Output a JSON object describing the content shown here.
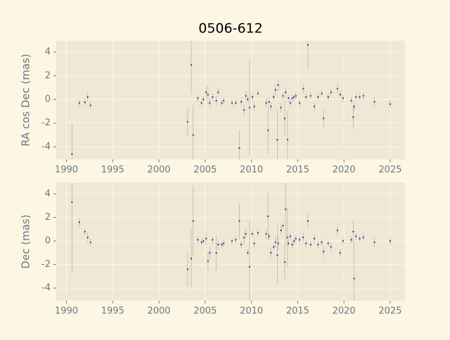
{
  "chart_data": [
    {
      "type": "scatter",
      "title": "0506-612",
      "ylabel": "RA cos Dec (mas)",
      "color": "#2a2a9a",
      "errcolor": "#bdb7a6",
      "grid": true,
      "xlim": [
        1988.9,
        2026.6
      ],
      "ylim": [
        -5.07,
        4.95
      ],
      "xticks": [
        1990,
        1995,
        2000,
        2005,
        2010,
        2015,
        2020,
        2025
      ],
      "yticks": [
        -4,
        -2,
        0,
        2,
        4
      ],
      "x": [
        1990.6,
        1991.4,
        1992.0,
        1992.3,
        1992.6,
        2003.1,
        2003.5,
        2003.7,
        2004.2,
        2004.6,
        2004.8,
        2005.1,
        2005.3,
        2005.5,
        2005.8,
        2006.2,
        2006.4,
        2006.8,
        2007.0,
        2007.9,
        2008.3,
        2008.7,
        2008.9,
        2009.2,
        2009.4,
        2009.6,
        2009.8,
        2010.1,
        2010.3,
        2010.7,
        2011.6,
        2011.8,
        2011.9,
        2012.1,
        2012.4,
        2012.6,
        2012.8,
        2012.9,
        2013.2,
        2013.4,
        2013.6,
        2013.7,
        2013.9,
        2014.0,
        2014.2,
        2014.4,
        2014.6,
        2014.8,
        2015.2,
        2015.6,
        2015.9,
        2016.1,
        2016.4,
        2016.8,
        2017.2,
        2017.6,
        2017.8,
        2018.3,
        2018.6,
        2019.3,
        2019.6,
        2019.9,
        2020.8,
        2021.0,
        2021.1,
        2021.3,
        2021.7,
        2022.1,
        2023.3,
        2025.0
      ],
      "values": [
        -4.6,
        -0.3,
        -0.25,
        0.2,
        -0.5,
        -1.9,
        2.9,
        -3.0,
        0.1,
        -0.3,
        0.0,
        0.6,
        0.4,
        -0.3,
        0.2,
        -0.1,
        0.6,
        -0.3,
        -0.1,
        -0.3,
        -0.3,
        -4.1,
        -0.2,
        -0.9,
        0.3,
        0.0,
        -0.7,
        0.2,
        -0.6,
        0.5,
        -0.3,
        -2.6,
        -0.2,
        -0.6,
        0.2,
        0.8,
        -3.4,
        1.2,
        -0.7,
        0.3,
        -1.6,
        0.6,
        -3.4,
        0.1,
        -0.3,
        0.1,
        0.2,
        0.3,
        -0.3,
        0.9,
        0.2,
        4.6,
        0.3,
        -0.6,
        0.2,
        0.5,
        -1.6,
        0.2,
        0.6,
        0.9,
        0.4,
        0.1,
        -0.1,
        -1.5,
        -0.6,
        0.2,
        0.2,
        0.3,
        -0.2,
        -0.4
      ],
      "errors": [
        2.6,
        0.3,
        0.3,
        0.4,
        0.3,
        1.2,
        2.5,
        2.5,
        0.3,
        0.3,
        0.3,
        0.5,
        0.8,
        0.4,
        0.3,
        0.4,
        0.4,
        0.3,
        0.3,
        0.3,
        0.3,
        1.5,
        0.3,
        0.5,
        0.4,
        0.3,
        4,
        0.3,
        0.4,
        0.3,
        0.4,
        2,
        0.3,
        0.4,
        0.3,
        0.5,
        2.5,
        0.5,
        0.4,
        0.3,
        1.5,
        0.5,
        2.5,
        0.3,
        0.3,
        0.3,
        0.3,
        0.3,
        0.3,
        0.4,
        0.3,
        2,
        0.3,
        0.4,
        0.3,
        0.3,
        0.8,
        0.3,
        0.3,
        0.4,
        0.3,
        0.3,
        0.3,
        1,
        0.4,
        0.3,
        0.3,
        0.3,
        0.4,
        0.3
      ]
    },
    {
      "type": "scatter",
      "ylabel": "Dec (mas)",
      "color": "#2a2a9a",
      "errcolor": "#bdb7a6",
      "grid": true,
      "xlim": [
        1988.9,
        2026.6
      ],
      "ylim": [
        -5.07,
        4.96
      ],
      "xticks": [
        1990,
        1995,
        2000,
        2005,
        2010,
        2015,
        2020,
        2025
      ],
      "yticks": [
        -4,
        -2,
        0,
        2,
        4
      ],
      "x": [
        1990.6,
        1991.4,
        1992.0,
        1992.3,
        1992.6,
        2003.1,
        2003.5,
        2003.7,
        2004.2,
        2004.6,
        2004.8,
        2005.1,
        2005.3,
        2005.5,
        2005.8,
        2006.2,
        2006.4,
        2006.8,
        2007.0,
        2007.9,
        2008.3,
        2008.7,
        2008.9,
        2009.2,
        2009.4,
        2009.6,
        2009.8,
        2010.1,
        2010.3,
        2010.7,
        2011.6,
        2011.8,
        2011.9,
        2012.1,
        2012.4,
        2012.6,
        2012.8,
        2012.9,
        2013.2,
        2013.4,
        2013.6,
        2013.7,
        2013.9,
        2014.0,
        2014.2,
        2014.4,
        2014.6,
        2014.8,
        2015.2,
        2015.6,
        2015.9,
        2016.1,
        2016.4,
        2016.8,
        2017.2,
        2017.6,
        2017.8,
        2018.3,
        2018.6,
        2019.3,
        2019.6,
        2019.9,
        2020.8,
        2021.0,
        2021.1,
        2021.3,
        2021.7,
        2022.1,
        2023.3,
        2025.0
      ],
      "values": [
        3.3,
        1.6,
        0.8,
        0.3,
        -0.1,
        -2.4,
        -1.5,
        1.7,
        0.1,
        -0.1,
        0.0,
        0.2,
        -1.7,
        -1.0,
        0.1,
        -1.0,
        -0.3,
        -0.3,
        -0.2,
        0.0,
        0.1,
        1.7,
        -0.3,
        0.3,
        0.6,
        -1.0,
        -2.2,
        0.6,
        -0.2,
        0.7,
        0.6,
        2.1,
        0.4,
        -1.0,
        -0.5,
        -0.1,
        -1.2,
        -0.2,
        0.9,
        1.3,
        -1.8,
        2.7,
        0.3,
        -0.2,
        0.4,
        -0.3,
        0.0,
        0.2,
        0.1,
        0.3,
        -0.2,
        1.7,
        -0.3,
        0.2,
        -0.3,
        -0.1,
        -0.9,
        -0.2,
        -0.5,
        0.9,
        -1.0,
        0.0,
        0.1,
        0.8,
        -3.2,
        0.4,
        0.2,
        0.3,
        -0.1,
        0.0
      ],
      "errors": [
        6,
        0.4,
        0.3,
        0.4,
        0.3,
        1.5,
        2.5,
        3,
        0.3,
        0.3,
        0.3,
        0.5,
        0.8,
        0.5,
        0.3,
        1.5,
        0.4,
        0.3,
        0.3,
        0.3,
        0.3,
        1.5,
        0.3,
        0.5,
        0.4,
        0.3,
        4,
        0.3,
        0.4,
        0.3,
        0.4,
        2,
        0.3,
        0.4,
        0.3,
        0.5,
        2.5,
        0.5,
        0.4,
        0.3,
        1.5,
        3,
        2.5,
        0.3,
        0.3,
        0.3,
        0.3,
        0.3,
        0.3,
        0.4,
        0.3,
        0.6,
        0.3,
        0.4,
        0.3,
        0.3,
        0.5,
        0.3,
        0.3,
        0.4,
        0.3,
        0.3,
        0.3,
        1,
        3,
        0.3,
        0.3,
        0.3,
        0.4,
        0.3
      ]
    }
  ]
}
